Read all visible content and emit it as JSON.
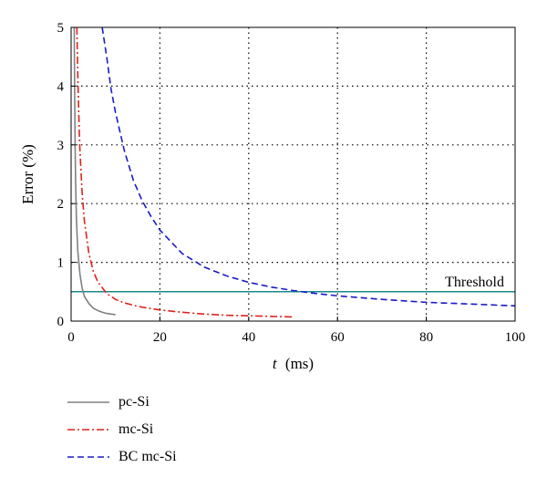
{
  "chart_data": {
    "type": "line",
    "xlabel_symbol": "t",
    "xlabel_unit": "(ms)",
    "ylabel": "Error (%)",
    "xlim": [
      0,
      100
    ],
    "ylim": [
      0,
      5
    ],
    "xticks": [
      0,
      20,
      40,
      60,
      80,
      100
    ],
    "yticks": [
      0,
      1,
      2,
      3,
      4,
      5
    ],
    "grid": true,
    "legend_position": "below",
    "series": [
      {
        "name": "pc-Si",
        "color": "#808080",
        "style": "solid",
        "x": [
          0.7,
          0.8,
          0.9,
          1.0,
          1.2,
          1.5,
          2.0,
          2.5,
          3.0,
          4.0,
          5.0,
          6.0,
          7.0,
          8.0,
          9.0,
          10.0
        ],
        "y": [
          5.0,
          3.9,
          3.0,
          2.4,
          1.75,
          1.2,
          0.8,
          0.55,
          0.42,
          0.3,
          0.22,
          0.18,
          0.15,
          0.13,
          0.12,
          0.11
        ]
      },
      {
        "name": "mc-Si",
        "color": "#e0221c",
        "style": "dashdot",
        "x": [
          1.3,
          1.5,
          1.8,
          2.0,
          2.5,
          3.0,
          4.0,
          5.0,
          6.0,
          8.0,
          10.0,
          12.0,
          15.0,
          20.0,
          25.0,
          30.0,
          35.0,
          40.0,
          45.0,
          50.0
        ],
        "y": [
          5.0,
          4.2,
          3.3,
          2.9,
          2.15,
          1.7,
          1.15,
          0.85,
          0.67,
          0.47,
          0.37,
          0.31,
          0.25,
          0.19,
          0.15,
          0.12,
          0.1,
          0.09,
          0.08,
          0.07
        ]
      },
      {
        "name": "BC mc-Si",
        "color": "#1a1ac8",
        "style": "dashed",
        "x": [
          7.0,
          8.0,
          9.0,
          10.0,
          12.0,
          14.0,
          16.0,
          18.0,
          20.0,
          25.0,
          30.0,
          35.0,
          40.0,
          45.0,
          50.0,
          55.0,
          60.0,
          70.0,
          80.0,
          90.0,
          100.0
        ],
        "y": [
          5.0,
          4.5,
          3.95,
          3.55,
          2.9,
          2.4,
          2.05,
          1.78,
          1.55,
          1.15,
          0.92,
          0.77,
          0.66,
          0.58,
          0.52,
          0.47,
          0.43,
          0.37,
          0.32,
          0.29,
          0.26
        ]
      }
    ],
    "threshold": {
      "label": "Threshold",
      "value": 0.5,
      "color": "#1a8a8a"
    }
  }
}
